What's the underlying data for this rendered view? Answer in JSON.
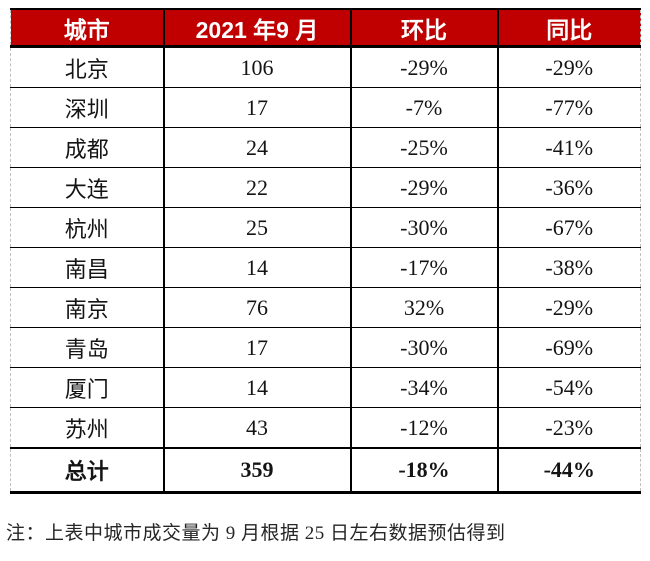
{
  "table": {
    "headers": [
      "城市",
      "2021 年9 月",
      "环比",
      "同比"
    ],
    "rows": [
      {
        "city": "北京",
        "volume": "106",
        "mom": "-29%",
        "yoy": "-29%"
      },
      {
        "city": "深圳",
        "volume": "17",
        "mom": "-7%",
        "yoy": "-77%"
      },
      {
        "city": "成都",
        "volume": "24",
        "mom": "-25%",
        "yoy": "-41%"
      },
      {
        "city": "大连",
        "volume": "22",
        "mom": "-29%",
        "yoy": "-36%"
      },
      {
        "city": "杭州",
        "volume": "25",
        "mom": "-30%",
        "yoy": "-67%"
      },
      {
        "city": "南昌",
        "volume": "14",
        "mom": "-17%",
        "yoy": "-38%"
      },
      {
        "city": "南京",
        "volume": "76",
        "mom": "32%",
        "yoy": "-29%"
      },
      {
        "city": "青岛",
        "volume": "17",
        "mom": "-30%",
        "yoy": "-69%"
      },
      {
        "city": "厦门",
        "volume": "14",
        "mom": "-34%",
        "yoy": "-54%"
      },
      {
        "city": "苏州",
        "volume": "43",
        "mom": "-12%",
        "yoy": "-23%"
      }
    ],
    "total": {
      "city": "总计",
      "volume": "359",
      "mom": "-18%",
      "yoy": "-44%"
    }
  },
  "note": "注：上表中城市成交量为 9 月根据 25 日左右数据预估得到",
  "colors": {
    "header_bg": "#c00000",
    "header_text": "#ffffff",
    "grid": "#000000",
    "outer_dash": "#bfbfbf",
    "body_text": "#141414"
  }
}
